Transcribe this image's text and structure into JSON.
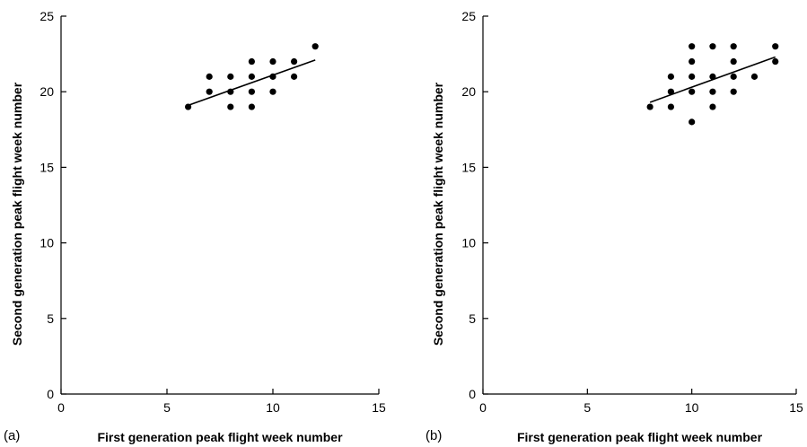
{
  "chart_data": [
    {
      "type": "scatter",
      "panel_label": "(a)",
      "xlabel": "First generation peak flight week number",
      "ylabel": "Second generation peak flight week number",
      "xlim": [
        0,
        15
      ],
      "ylim": [
        0,
        25
      ],
      "xticks": [
        0,
        5,
        10,
        15
      ],
      "yticks": [
        0,
        5,
        10,
        15,
        20,
        25
      ],
      "grid": false,
      "points": [
        {
          "x": 6,
          "y": 19
        },
        {
          "x": 7,
          "y": 20
        },
        {
          "x": 7,
          "y": 21
        },
        {
          "x": 8,
          "y": 19
        },
        {
          "x": 8,
          "y": 20
        },
        {
          "x": 8,
          "y": 21
        },
        {
          "x": 9,
          "y": 19
        },
        {
          "x": 9,
          "y": 20
        },
        {
          "x": 9,
          "y": 21
        },
        {
          "x": 9,
          "y": 22
        },
        {
          "x": 10,
          "y": 20
        },
        {
          "x": 10,
          "y": 21
        },
        {
          "x": 10,
          "y": 22
        },
        {
          "x": 11,
          "y": 21
        },
        {
          "x": 11,
          "y": 22
        },
        {
          "x": 12,
          "y": 23
        }
      ],
      "trendline": {
        "x": [
          6,
          12
        ],
        "y": [
          19.1,
          22.1
        ]
      }
    },
    {
      "type": "scatter",
      "panel_label": "(b)",
      "xlabel": "First generation peak flight week number",
      "ylabel": "Second generation peak flight week number",
      "xlim": [
        0,
        15
      ],
      "ylim": [
        0,
        25
      ],
      "xticks": [
        0,
        5,
        10,
        15
      ],
      "yticks": [
        0,
        5,
        10,
        15,
        20,
        25
      ],
      "grid": false,
      "points": [
        {
          "x": 8,
          "y": 19
        },
        {
          "x": 9,
          "y": 19
        },
        {
          "x": 9,
          "y": 20
        },
        {
          "x": 9,
          "y": 21
        },
        {
          "x": 10,
          "y": 18
        },
        {
          "x": 10,
          "y": 20
        },
        {
          "x": 10,
          "y": 21
        },
        {
          "x": 10,
          "y": 22
        },
        {
          "x": 10,
          "y": 23
        },
        {
          "x": 11,
          "y": 19
        },
        {
          "x": 11,
          "y": 20
        },
        {
          "x": 11,
          "y": 21
        },
        {
          "x": 11,
          "y": 23
        },
        {
          "x": 12,
          "y": 20
        },
        {
          "x": 12,
          "y": 21
        },
        {
          "x": 12,
          "y": 22
        },
        {
          "x": 12,
          "y": 23
        },
        {
          "x": 13,
          "y": 21
        },
        {
          "x": 14,
          "y": 22
        },
        {
          "x": 14,
          "y": 23
        }
      ],
      "trendline": {
        "x": [
          8,
          14
        ],
        "y": [
          19.3,
          22.3
        ]
      }
    }
  ]
}
